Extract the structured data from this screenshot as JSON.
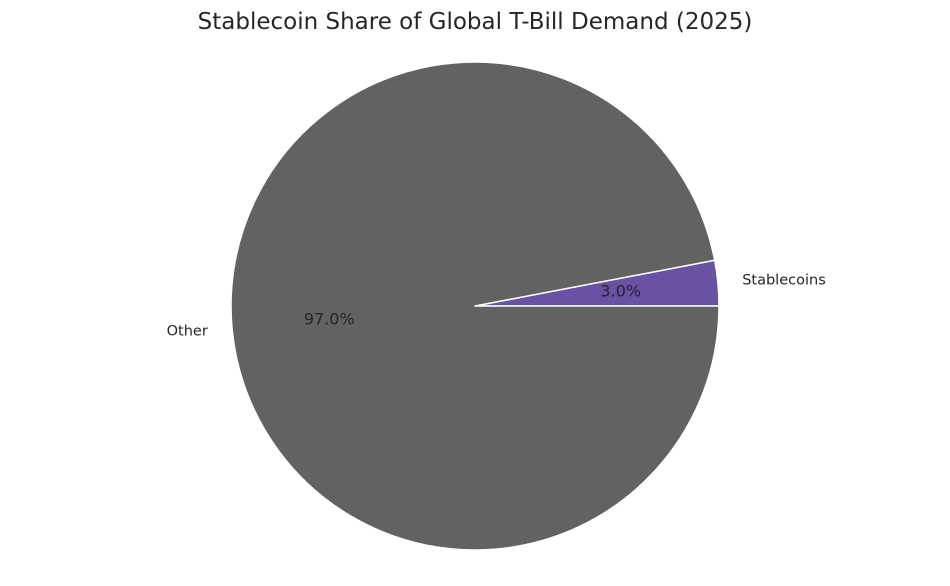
{
  "chart_data": {
    "type": "pie",
    "title": "Stablecoin Share of Global T-Bill Demand (2025)",
    "slices": [
      {
        "label": "Stablecoins",
        "value": 3.0,
        "pct_label": "3.0%",
        "color": "#6a51a3"
      },
      {
        "label": "Other",
        "value": 97.0,
        "pct_label": "97.0%",
        "color": "#626262"
      }
    ],
    "start_angle_deg": 0,
    "direction": "counterclockwise",
    "edge_color": "#ffffff"
  }
}
